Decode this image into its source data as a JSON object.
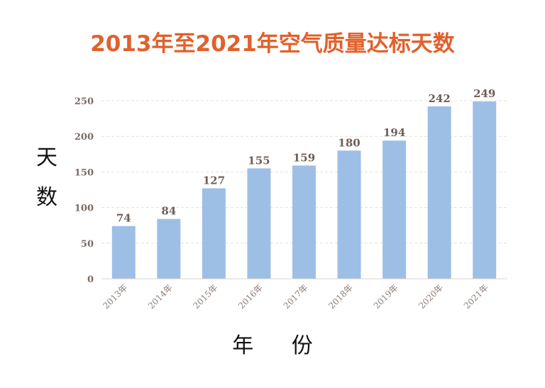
{
  "chart_data": {
    "type": "bar",
    "title": "2013年至2021年空气质量达标天数",
    "xlabel": "年 份",
    "ylabel": "天 数",
    "categories": [
      "2013年",
      "2014年",
      "2015年",
      "2016年",
      "2017年",
      "2018年",
      "2019年",
      "2020年",
      "2021年"
    ],
    "values": [
      74,
      84,
      127,
      155,
      159,
      180,
      194,
      242,
      249
    ],
    "yticks": [
      "0",
      "50",
      "100",
      "150",
      "200",
      "250"
    ],
    "ylim": [
      0,
      250
    ],
    "grid": true,
    "bar_color": "#9dbfe6",
    "title_color": "#e2602b"
  }
}
